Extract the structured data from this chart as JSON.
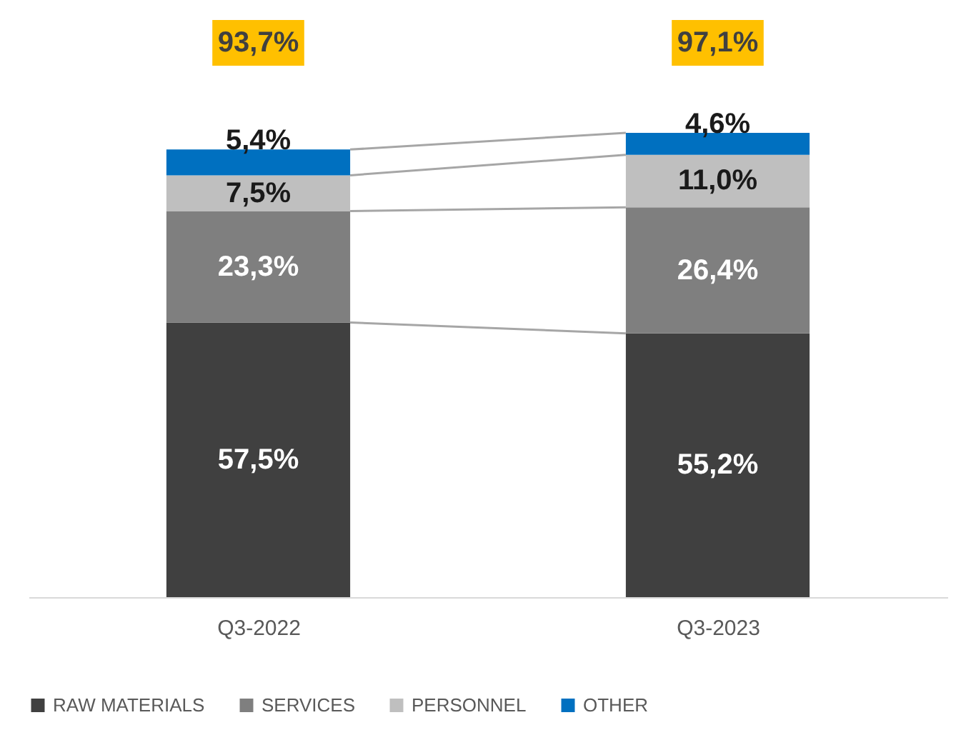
{
  "chart_data": {
    "type": "bar",
    "stacked": true,
    "categories": [
      "Q3-2022",
      "Q3-2023"
    ],
    "ylim": [
      0,
      125
    ],
    "legend": "bottom",
    "totals": [
      "93,7%",
      "97,1%"
    ],
    "series": [
      {
        "name": "RAW MATERIALS",
        "color": "#404040",
        "values": [
          57.5,
          55.2
        ],
        "value_labels": [
          "57,5%",
          "55,2%"
        ]
      },
      {
        "name": "SERVICES",
        "color": "#7f7f7f",
        "values": [
          23.3,
          26.4
        ],
        "value_labels": [
          "23,3%",
          "26,4%"
        ]
      },
      {
        "name": "PERSONNEL",
        "color": "#bfbfbf",
        "values": [
          7.5,
          11.0
        ],
        "value_labels": [
          "7,5%",
          "11,0%"
        ]
      },
      {
        "name": "OTHER",
        "color": "#0070c0",
        "values": [
          5.4,
          4.6
        ],
        "value_labels": [
          "5,4%",
          "4,6%"
        ]
      }
    ]
  }
}
